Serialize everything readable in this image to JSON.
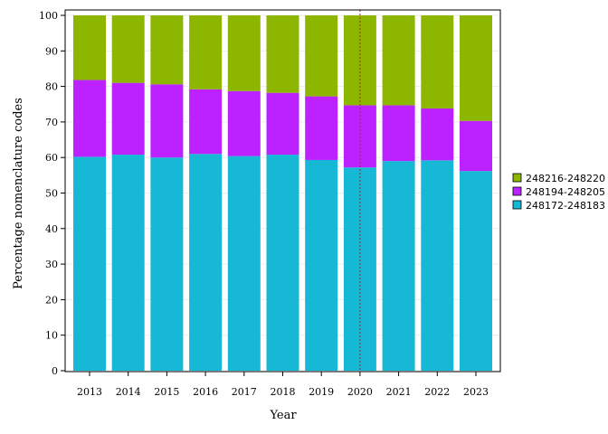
{
  "chart_data": {
    "type": "bar",
    "stacked": true,
    "title": "",
    "xlabel": "Year",
    "ylabel": "Percentage nomenclature codes",
    "ylim": [
      0,
      100
    ],
    "yticks": [
      0,
      10,
      20,
      30,
      40,
      50,
      60,
      70,
      80,
      90,
      100
    ],
    "grid": true,
    "legend_position": "right",
    "reference_line": {
      "x": "2020",
      "color": "#b22222",
      "style": "dotted"
    },
    "categories": [
      "2013",
      "2014",
      "2015",
      "2016",
      "2017",
      "2018",
      "2019",
      "2020",
      "2021",
      "2022",
      "2023"
    ],
    "series": [
      {
        "name": "248172-248183",
        "color": "#17b8d6",
        "values": [
          60.2,
          60.8,
          60.0,
          61.0,
          60.4,
          60.8,
          59.3,
          57.2,
          59.0,
          59.2,
          56.2
        ]
      },
      {
        "name": "248194-248205",
        "color": "#bb22ff",
        "values": [
          21.6,
          20.2,
          20.6,
          18.2,
          18.3,
          17.4,
          17.9,
          17.5,
          15.7,
          14.6,
          14.1
        ]
      },
      {
        "name": "248216-248220",
        "color": "#8db600",
        "values": [
          18.2,
          19.0,
          19.4,
          20.8,
          21.3,
          21.8,
          22.8,
          25.3,
          25.3,
          26.2,
          29.7
        ]
      }
    ],
    "legend_order": [
      "248216-248220",
      "248194-248205",
      "248172-248183"
    ]
  }
}
